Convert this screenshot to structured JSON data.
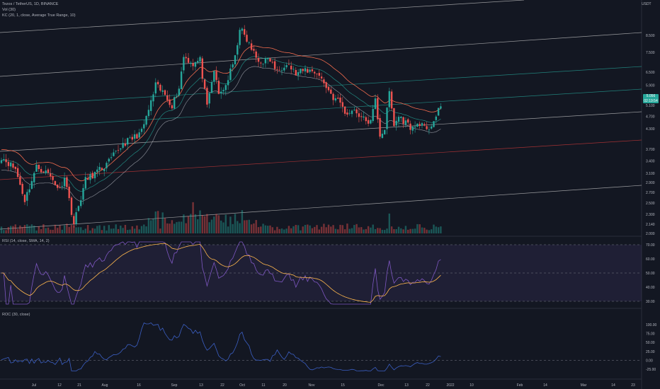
{
  "header": {
    "symbol_line": "Tezos / TetherUS, 1D, BINANCE",
    "vol_line": "Vol (30)",
    "kc_line": "KC (20, 1, close, Average True Range, 10)",
    "currency": "USDT"
  },
  "price_badge": {
    "price": "5.056",
    "countdown": "02:19:54"
  },
  "colors": {
    "background": "#131722",
    "up": "#26a69a",
    "down": "#ef5350",
    "keltner": "#f06b4e",
    "channel": "#c8c8c8",
    "teal_line": "#26a69a",
    "red_line": "#d33a3a",
    "rsi": "#7e57c2",
    "rsi_ma": "#ffb74d",
    "roc": "#3b5fc4"
  },
  "rsi_panel": {
    "title": "RSI (14, close, SMA, 14, 2)",
    "ticks": [
      "70.00",
      "60.00",
      "50.00",
      "40.00",
      "30.00"
    ]
  },
  "roc_panel": {
    "title": "ROC (30, close)",
    "ticks": [
      "100.00",
      "75.00",
      "50.00",
      "25.00",
      "0.00",
      "-25.00"
    ]
  },
  "chart_data": {
    "type": "candlestick",
    "price_axis_ticks": [
      "8.500",
      "7.500",
      "6.500",
      "5.900",
      "5.100",
      "4.700",
      "4.300",
      "3.700",
      "3.400",
      "3.100",
      "2.900",
      "2.700",
      "2.500",
      "2.300",
      "2.140",
      "2.000"
    ],
    "x_tick_labels": [
      "Jul",
      "12",
      "21",
      "Aug",
      "16",
      "Sep",
      "13",
      "22",
      "Oct",
      "11",
      "20",
      "Nov",
      "15",
      "Dec",
      "13",
      "22",
      "2022",
      "10",
      "Feb",
      "14",
      "Mar",
      "14",
      "23"
    ],
    "anchors": [
      [
        0,
        3.5
      ],
      [
        6,
        3.2
      ],
      [
        10,
        2.55
      ],
      [
        15,
        3.25
      ],
      [
        20,
        3.1
      ],
      [
        25,
        2.75
      ],
      [
        27,
        3.05
      ],
      [
        31,
        2.15
      ],
      [
        36,
        2.95
      ],
      [
        45,
        3.3
      ],
      [
        52,
        3.85
      ],
      [
        56,
        4.0
      ],
      [
        60,
        4.2
      ],
      [
        64,
        5.2
      ],
      [
        66,
        5.9
      ],
      [
        70,
        5.5
      ],
      [
        73,
        5.1
      ],
      [
        76,
        5.8
      ],
      [
        78,
        7.3
      ],
      [
        82,
        6.9
      ],
      [
        85,
        7.1
      ],
      [
        88,
        5.0
      ],
      [
        91,
        6.6
      ],
      [
        93,
        5.5
      ],
      [
        96,
        5.9
      ],
      [
        100,
        7.2
      ],
      [
        102,
        9.0
      ],
      [
        105,
        8.2
      ],
      [
        110,
        7.0
      ],
      [
        115,
        7.1
      ],
      [
        118,
        6.5
      ],
      [
        122,
        7.0
      ],
      [
        126,
        6.4
      ],
      [
        130,
        6.6
      ],
      [
        135,
        6.5
      ],
      [
        138,
        6.0
      ],
      [
        142,
        5.4
      ],
      [
        145,
        5.2
      ],
      [
        148,
        4.7
      ],
      [
        150,
        5.0
      ],
      [
        155,
        4.6
      ],
      [
        158,
        4.5
      ],
      [
        160,
        5.3
      ],
      [
        162,
        4.1
      ],
      [
        164,
        4.3
      ],
      [
        166,
        5.6
      ],
      [
        168,
        4.4
      ],
      [
        170,
        4.7
      ],
      [
        173,
        4.5
      ],
      [
        176,
        4.3
      ],
      [
        179,
        4.5
      ],
      [
        182,
        4.2
      ],
      [
        186,
        4.7
      ],
      [
        188,
        5.06
      ]
    ]
  }
}
